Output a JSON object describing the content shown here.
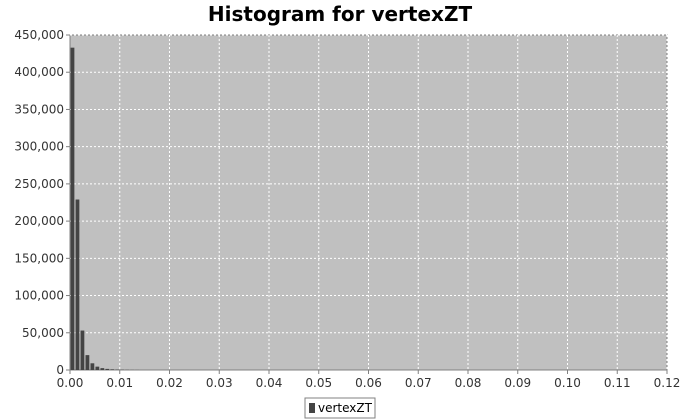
{
  "chart_data": {
    "type": "bar",
    "title": "Histogram for vertexZT",
    "xlabel": "",
    "ylabel": "",
    "xlim": [
      0.0,
      0.12
    ],
    "ylim": [
      0,
      450000
    ],
    "x_ticks": [
      "0.00",
      "0.01",
      "0.02",
      "0.03",
      "0.04",
      "0.05",
      "0.06",
      "0.07",
      "0.08",
      "0.09",
      "0.10",
      "0.11",
      "0.12"
    ],
    "y_ticks": [
      "0",
      "50,000",
      "100,000",
      "150,000",
      "200,000",
      "250,000",
      "300,000",
      "350,000",
      "400,000",
      "450,000"
    ],
    "grid": true,
    "legend": "bottom",
    "series": [
      {
        "name": "vertexZT",
        "color": "#444444",
        "bin_width": 0.001,
        "x": [
          0.0,
          0.001,
          0.002,
          0.003,
          0.004,
          0.005,
          0.006,
          0.007,
          0.008,
          0.009,
          0.01,
          0.011,
          0.012,
          0.013
        ],
        "values": [
          433000,
          229000,
          53000,
          20000,
          9000,
          4500,
          2500,
          1500,
          900,
          600,
          400,
          250,
          150,
          100
        ]
      }
    ]
  }
}
